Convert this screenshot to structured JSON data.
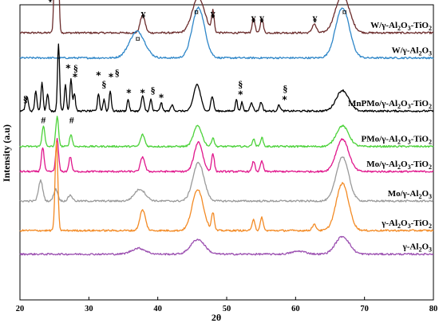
{
  "chart_data": {
    "type": "line",
    "xlabel": "2θ",
    "ylabel": "Intensity (a.u)",
    "xlim": [
      20,
      80
    ],
    "xticks": [
      20,
      30,
      40,
      50,
      60,
      70,
      80
    ],
    "xtick_labels": [
      "20",
      "30",
      "40",
      "50",
      "60",
      "70",
      "80"
    ],
    "grid": false,
    "series": [
      {
        "name": "W/γ-Al₂O₃-TiO₂",
        "label_parts": [
          [
            "W/γ-Al",
            "n"
          ],
          [
            "2",
            "s"
          ],
          [
            "O",
            "n"
          ],
          [
            "3",
            "s"
          ],
          [
            "-TiO",
            "n"
          ],
          [
            "2",
            "s"
          ]
        ],
        "color": "#6b2c2c",
        "baseline": 0.905,
        "peaks": [
          [
            25.3,
            0.68,
            0.22
          ],
          [
            37.8,
            0.06,
            0.35
          ],
          [
            45.9,
            0.12,
            0.9
          ],
          [
            48.0,
            0.07,
            0.18
          ],
          [
            53.9,
            0.05,
            0.2
          ],
          [
            55.1,
            0.05,
            0.2
          ],
          [
            62.7,
            0.03,
            0.3
          ],
          [
            66.8,
            0.13,
            1.0
          ]
        ]
      },
      {
        "name": "W/γ-Al₂O₃",
        "label_parts": [
          [
            "W/γ-Al",
            "n"
          ],
          [
            "2",
            "s"
          ],
          [
            "O",
            "n"
          ],
          [
            "3",
            "s"
          ]
        ],
        "color": "#2e86c8",
        "baseline": 0.82,
        "peaks": [
          [
            37.0,
            0.09,
            1.1
          ],
          [
            45.9,
            0.17,
            0.9
          ],
          [
            66.8,
            0.17,
            1.0
          ]
        ]
      },
      {
        "name": "MnPMo/γ-Al₂O₃-TiO₂",
        "label_parts": [
          [
            "MnPMo/γ-Al",
            "n"
          ],
          [
            "2",
            "s"
          ],
          [
            "O",
            "n"
          ],
          [
            "3",
            "s"
          ],
          [
            "-TiO",
            "n"
          ],
          [
            "2",
            "s"
          ]
        ],
        "color": "#000000",
        "baseline": 0.64,
        "peaks": [
          [
            21.0,
            0.05,
            0.2
          ],
          [
            22.3,
            0.07,
            0.15
          ],
          [
            23.2,
            0.1,
            0.15
          ],
          [
            24.0,
            0.06,
            0.15
          ],
          [
            25.6,
            0.23,
            0.15
          ],
          [
            26.6,
            0.09,
            0.15
          ],
          [
            27.4,
            0.11,
            0.15
          ],
          [
            27.9,
            0.06,
            0.15
          ],
          [
            31.4,
            0.06,
            0.15
          ],
          [
            32.2,
            0.04,
            0.15
          ],
          [
            33.1,
            0.07,
            0.15
          ],
          [
            35.7,
            0.04,
            0.15
          ],
          [
            37.8,
            0.05,
            0.2
          ],
          [
            39.0,
            0.04,
            0.15
          ],
          [
            40.5,
            0.03,
            0.15
          ],
          [
            42.1,
            0.02,
            0.2
          ],
          [
            45.7,
            0.09,
            0.5
          ],
          [
            47.9,
            0.05,
            0.2
          ],
          [
            51.4,
            0.04,
            0.15
          ],
          [
            52.2,
            0.03,
            0.15
          ],
          [
            53.6,
            0.03,
            0.2
          ],
          [
            55.0,
            0.03,
            0.2
          ],
          [
            57.6,
            0.02,
            0.2
          ],
          [
            66.8,
            0.07,
            0.9
          ]
        ]
      },
      {
        "name": "PMo/γ-Al₂O₃-TiO₂",
        "label_parts": [
          [
            "PMo/γ-Al",
            "n"
          ],
          [
            "2",
            "s"
          ],
          [
            "O",
            "n"
          ],
          [
            "3",
            "s"
          ],
          [
            "-TiO",
            "n"
          ],
          [
            "2",
            "s"
          ]
        ],
        "color": "#4cd23a",
        "baseline": 0.52,
        "peaks": [
          [
            23.4,
            0.07,
            0.2
          ],
          [
            25.4,
            0.1,
            0.2
          ],
          [
            27.4,
            0.04,
            0.2
          ],
          [
            37.8,
            0.04,
            0.3
          ],
          [
            45.8,
            0.07,
            0.6
          ],
          [
            48.0,
            0.03,
            0.2
          ],
          [
            53.9,
            0.025,
            0.2
          ],
          [
            55.1,
            0.03,
            0.2
          ],
          [
            66.8,
            0.07,
            0.9
          ]
        ]
      },
      {
        "name": "Mo/γ-Al₂O₃-TiO₂",
        "label_parts": [
          [
            "Mo/γ-Al",
            "n"
          ],
          [
            "2",
            "s"
          ],
          [
            "O",
            "n"
          ],
          [
            "3",
            "s"
          ],
          [
            "-TiO",
            "n"
          ],
          [
            "2",
            "s"
          ]
        ],
        "color": "#e0168c",
        "baseline": 0.435,
        "peaks": [
          [
            23.3,
            0.08,
            0.2
          ],
          [
            25.4,
            0.11,
            0.2
          ],
          [
            27.3,
            0.05,
            0.2
          ],
          [
            37.8,
            0.05,
            0.3
          ],
          [
            45.9,
            0.1,
            0.6
          ],
          [
            48.0,
            0.06,
            0.2
          ],
          [
            53.9,
            0.035,
            0.2
          ],
          [
            55.1,
            0.035,
            0.2
          ],
          [
            66.8,
            0.11,
            0.9
          ]
        ]
      },
      {
        "name": "Mo/γ-Al₂O₃",
        "label_parts": [
          [
            "Mo/γ-Al",
            "n"
          ],
          [
            "2",
            "s"
          ],
          [
            "O",
            "n"
          ],
          [
            "3",
            "s"
          ]
        ],
        "color": "#9a9a9a",
        "baseline": 0.335,
        "peaks": [
          [
            23.0,
            0.07,
            0.3
          ],
          [
            25.2,
            0.04,
            0.3
          ],
          [
            27.3,
            0.02,
            0.3
          ],
          [
            37.4,
            0.04,
            0.8
          ],
          [
            45.9,
            0.13,
            0.8
          ],
          [
            66.8,
            0.15,
            0.9
          ]
        ]
      },
      {
        "name": "γ-Al₂O₃-TiO₂",
        "label_parts": [
          [
            "γ-Al",
            "n"
          ],
          [
            "2",
            "s"
          ],
          [
            "O",
            "n"
          ],
          [
            "3",
            "s"
          ],
          [
            "-TiO",
            "n"
          ],
          [
            "2",
            "s"
          ]
        ],
        "color": "#f38a24",
        "baseline": 0.235,
        "peaks": [
          [
            25.3,
            0.3,
            0.2
          ],
          [
            37.8,
            0.07,
            0.4
          ],
          [
            45.8,
            0.14,
            0.8
          ],
          [
            48.0,
            0.06,
            0.2
          ],
          [
            53.9,
            0.04,
            0.2
          ],
          [
            55.1,
            0.045,
            0.2
          ],
          [
            62.7,
            0.02,
            0.3
          ],
          [
            66.8,
            0.16,
            0.9
          ]
        ]
      },
      {
        "name": "γ-Al₂O₃",
        "label_parts": [
          [
            "γ-Al",
            "n"
          ],
          [
            "2",
            "s"
          ],
          [
            "O",
            "n"
          ],
          [
            "3",
            "s"
          ]
        ],
        "color": "#9b4fb0",
        "baseline": 0.155,
        "peaks": [
          [
            37.2,
            0.02,
            1.0
          ],
          [
            45.8,
            0.05,
            1.0
          ],
          [
            60.5,
            0.01,
            1.0
          ],
          [
            66.8,
            0.06,
            1.0
          ]
        ]
      }
    ],
    "annotations": [
      {
        "text": "*",
        "x": 25.9,
        "y": 1.075,
        "cls": "star"
      },
      {
        "text": "¥",
        "x": 24.4,
        "y": 1.01,
        "cls": "symbol"
      },
      {
        "text": "¥",
        "x": 37.9,
        "y": 0.955,
        "cls": "symbol"
      },
      {
        "text": "¤",
        "x": 45.6,
        "y": 0.965,
        "cls": "symbol"
      },
      {
        "text": "¥",
        "x": 48.0,
        "y": 0.955,
        "cls": "symbol"
      },
      {
        "text": "¥",
        "x": 53.9,
        "y": 0.94,
        "cls": "symbol"
      },
      {
        "text": "¥",
        "x": 55.1,
        "y": 0.94,
        "cls": "symbol"
      },
      {
        "text": "¥",
        "x": 62.8,
        "y": 0.94,
        "cls": "symbol"
      },
      {
        "text": "¤",
        "x": 67.1,
        "y": 0.965,
        "cls": "symbol"
      },
      {
        "text": "¤",
        "x": 37.1,
        "y": 0.875,
        "cls": "symbol"
      },
      {
        "text": "§",
        "x": 20.8,
        "y": 0.67,
        "cls": "symbol"
      },
      {
        "text": "*",
        "x": 27.0,
        "y": 0.775,
        "cls": "star"
      },
      {
        "text": "§",
        "x": 28.1,
        "y": 0.775,
        "cls": "symbol"
      },
      {
        "text": "*",
        "x": 28.0,
        "y": 0.745,
        "cls": "star"
      },
      {
        "text": "*",
        "x": 31.4,
        "y": 0.75,
        "cls": "star"
      },
      {
        "text": "§",
        "x": 32.2,
        "y": 0.72,
        "cls": "symbol"
      },
      {
        "text": "*",
        "x": 33.2,
        "y": 0.745,
        "cls": "star"
      },
      {
        "text": "§",
        "x": 34.1,
        "y": 0.76,
        "cls": "symbol"
      },
      {
        "text": "*",
        "x": 35.8,
        "y": 0.69,
        "cls": "star"
      },
      {
        "text": "*",
        "x": 37.8,
        "y": 0.69,
        "cls": "star"
      },
      {
        "text": "§",
        "x": 39.3,
        "y": 0.7,
        "cls": "symbol"
      },
      {
        "text": "*",
        "x": 40.5,
        "y": 0.675,
        "cls": "star"
      },
      {
        "text": "§",
        "x": 52.0,
        "y": 0.72,
        "cls": "symbol"
      },
      {
        "text": "*",
        "x": 52.0,
        "y": 0.685,
        "cls": "star"
      },
      {
        "text": "§",
        "x": 58.5,
        "y": 0.705,
        "cls": "symbol"
      },
      {
        "text": "*",
        "x": 58.4,
        "y": 0.668,
        "cls": "star"
      },
      {
        "text": "#",
        "x": 23.4,
        "y": 0.598,
        "cls": "symbol"
      },
      {
        "text": "#",
        "x": 27.5,
        "y": 0.598,
        "cls": "symbol"
      }
    ]
  }
}
